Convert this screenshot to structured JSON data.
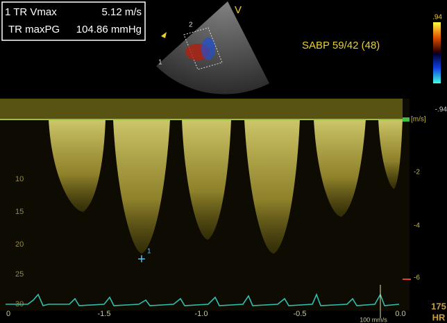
{
  "measurements": {
    "rows": [
      [
        "1 TR Vmax",
        "5.12 m/s"
      ],
      [
        "TR maxPG",
        "104.86 mmHg"
      ]
    ]
  },
  "sector": {
    "marker": "V",
    "depth_labels": [
      "2",
      "1"
    ]
  },
  "annotation": "SABP 59/42 (48)",
  "color_bar": {
    "top": ".94",
    "bottom": "-.94"
  },
  "doppler": {
    "unit": "[m/s]",
    "velocity_ticks": [
      "-2",
      "-4",
      "-6"
    ],
    "depth_ticks": [
      "10",
      "15",
      "20",
      "25",
      "30"
    ],
    "time_ticks": [
      "0",
      "-1.5",
      "-1.0",
      "-0.5",
      "0.0"
    ],
    "cursor": {
      "symbol": "+",
      "label": "1"
    },
    "sweep_speed": "100 mm/s"
  },
  "heart_rate": {
    "value": "175",
    "label": "HR"
  }
}
